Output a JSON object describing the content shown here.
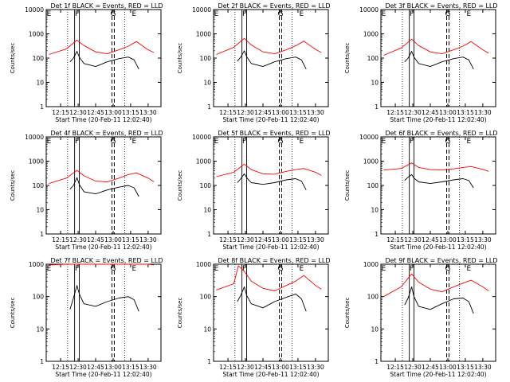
{
  "colors": {
    "events": "#000000",
    "lld": "#ff0000",
    "axes": "#000000",
    "background": "#ffffff"
  },
  "common": {
    "ylabel": "Counts/sec",
    "xlabel": "Start Time (20-Feb-11 12:02:40)",
    "x_tick_labels": [
      "12:15",
      "12:30",
      "12:45",
      "13:00",
      "13:15",
      "13:30"
    ],
    "y_tick_labels": [
      "1",
      "10",
      "100",
      "1000",
      "10000"
    ]
  },
  "chart_data": [
    {
      "type": "line",
      "title": "Det 1f BLACK = Events, RED = LLD",
      "xlim": [
        "12:02:40",
        "13:41:00"
      ],
      "ylim": [
        1,
        10000
      ],
      "yscale": "log",
      "markers": [
        "E",
        "F",
        "G",
        "E"
      ],
      "series": [
        {
          "name": "Events",
          "x": [
            "12:23",
            "12:26",
            "12:29",
            "12:31",
            "12:35",
            "12:45",
            "12:55",
            "13:05",
            "13:13",
            "13:18",
            "13:22"
          ],
          "values": [
            70,
            100,
            190,
            110,
            60,
            45,
            70,
            95,
            110,
            85,
            35
          ]
        },
        {
          "name": "LLD",
          "x": [
            "12:05",
            "12:20",
            "12:29",
            "12:35",
            "12:45",
            "12:55",
            "13:05",
            "13:13",
            "13:20",
            "13:30",
            "13:35"
          ],
          "values": [
            140,
            240,
            550,
            330,
            180,
            150,
            220,
            310,
            480,
            220,
            170
          ]
        }
      ]
    },
    {
      "type": "line",
      "title": "Det 2f BLACK = Events, RED = LLD",
      "xlim": [
        "12:02:40",
        "13:41:00"
      ],
      "ylim": [
        1,
        10000
      ],
      "yscale": "log",
      "markers": [
        "E",
        "F",
        "G",
        "E"
      ],
      "series": [
        {
          "name": "Events",
          "x": [
            "12:23",
            "12:26",
            "12:29",
            "12:31",
            "12:35",
            "12:45",
            "12:55",
            "13:05",
            "13:13",
            "13:18",
            "13:22"
          ],
          "values": [
            75,
            110,
            200,
            115,
            60,
            45,
            70,
            95,
            110,
            85,
            35
          ]
        },
        {
          "name": "LLD",
          "x": [
            "12:05",
            "12:20",
            "12:29",
            "12:35",
            "12:45",
            "12:55",
            "13:05",
            "13:13",
            "13:20",
            "13:30",
            "13:35"
          ],
          "values": [
            140,
            280,
            650,
            350,
            180,
            150,
            220,
            320,
            500,
            230,
            170
          ]
        }
      ]
    },
    {
      "type": "line",
      "title": "Det 3f BLACK = Events, RED = LLD",
      "xlim": [
        "12:02:40",
        "13:41:00"
      ],
      "ylim": [
        1,
        10000
      ],
      "yscale": "log",
      "markers": [
        "E",
        "F",
        "G",
        "E"
      ],
      "series": [
        {
          "name": "Events",
          "x": [
            "12:23",
            "12:26",
            "12:29",
            "12:31",
            "12:35",
            "12:45",
            "12:55",
            "13:05",
            "13:13",
            "13:18",
            "13:22"
          ],
          "values": [
            70,
            100,
            190,
            110,
            60,
            45,
            70,
            95,
            110,
            85,
            35
          ]
        },
        {
          "name": "LLD",
          "x": [
            "12:05",
            "12:20",
            "12:29",
            "12:35",
            "12:45",
            "12:55",
            "13:05",
            "13:13",
            "13:20",
            "13:30",
            "13:35"
          ],
          "values": [
            130,
            260,
            600,
            330,
            180,
            150,
            220,
            310,
            480,
            220,
            160
          ]
        }
      ]
    },
    {
      "type": "line",
      "title": "Det 4f BLACK = Events, RED = LLD",
      "xlim": [
        "12:02:40",
        "13:41:00"
      ],
      "ylim": [
        1,
        10000
      ],
      "yscale": "log",
      "markers": [
        "E",
        "F",
        "G",
        "E"
      ],
      "series": [
        {
          "name": "Events",
          "x": [
            "12:23",
            "12:26",
            "12:29",
            "12:31",
            "12:35",
            "12:45",
            "12:55",
            "13:05",
            "13:13",
            "13:18",
            "13:22"
          ],
          "values": [
            70,
            100,
            210,
            110,
            55,
            45,
            65,
            85,
            100,
            80,
            35
          ]
        },
        {
          "name": "LLD",
          "x": [
            "12:05",
            "12:20",
            "12:29",
            "12:35",
            "12:45",
            "12:55",
            "13:05",
            "13:13",
            "13:20",
            "13:30",
            "13:35"
          ],
          "values": [
            120,
            200,
            420,
            250,
            150,
            140,
            200,
            280,
            330,
            200,
            140
          ]
        }
      ]
    },
    {
      "type": "line",
      "title": "Det 5f BLACK = Events, RED = LLD",
      "xlim": [
        "12:02:40",
        "13:41:00"
      ],
      "ylim": [
        1,
        10000
      ],
      "yscale": "log",
      "markers": [
        "E",
        "F",
        "G",
        "E"
      ],
      "series": [
        {
          "name": "Events",
          "x": [
            "12:23",
            "12:26",
            "12:29",
            "12:31",
            "12:35",
            "12:45",
            "12:55",
            "13:05",
            "13:13",
            "13:18",
            "13:22"
          ],
          "values": [
            130,
            190,
            300,
            210,
            130,
            110,
            130,
            170,
            190,
            150,
            65
          ]
        },
        {
          "name": "LLD",
          "x": [
            "12:05",
            "12:20",
            "12:29",
            "12:35",
            "12:45",
            "12:55",
            "13:05",
            "13:13",
            "13:20",
            "13:30",
            "13:35"
          ],
          "values": [
            230,
            350,
            750,
            450,
            300,
            290,
            380,
            450,
            500,
            350,
            260
          ]
        }
      ]
    },
    {
      "type": "line",
      "title": "Det 6f BLACK = Events, RED = LLD",
      "xlim": [
        "12:02:40",
        "13:41:00"
      ],
      "ylim": [
        1,
        10000
      ],
      "yscale": "log",
      "markers": [
        "E",
        "F",
        "G",
        "E"
      ],
      "series": [
        {
          "name": "Events",
          "x": [
            "12:23",
            "12:26",
            "12:29",
            "12:31",
            "12:35",
            "12:45",
            "12:55",
            "13:05",
            "13:13",
            "13:18",
            "13:22"
          ],
          "values": [
            160,
            220,
            280,
            200,
            140,
            120,
            140,
            170,
            190,
            160,
            80
          ]
        },
        {
          "name": "LLD",
          "x": [
            "12:05",
            "12:20",
            "12:29",
            "12:35",
            "12:45",
            "12:55",
            "13:05",
            "13:13",
            "13:20",
            "13:30",
            "13:35"
          ],
          "values": [
            430,
            500,
            850,
            550,
            450,
            430,
            480,
            550,
            600,
            460,
            380
          ]
        }
      ]
    },
    {
      "type": "line",
      "title": "Det 7f BLACK = Events, RED = LLD",
      "xlim": [
        "12:02:40",
        "13:41:00"
      ],
      "ylim": [
        1,
        1000
      ],
      "yscale": "log",
      "markers": [
        "E",
        "F",
        "G",
        "E"
      ],
      "series": [
        {
          "name": "Events",
          "x": [
            "12:23",
            "12:26",
            "12:29",
            "12:31",
            "12:35",
            "12:45",
            "12:55",
            "13:05",
            "13:13",
            "13:18",
            "13:22"
          ],
          "values": [
            40,
            90,
            220,
            120,
            60,
            50,
            70,
            90,
            100,
            80,
            35
          ]
        },
        {
          "name": "LLD",
          "x": [
            "12:05",
            "12:20",
            "12:29",
            "12:35",
            "12:45",
            "12:55",
            "13:05",
            "13:13",
            "13:20",
            "13:30",
            "13:35"
          ],
          "values": [
            950,
            1000,
            1000,
            1000,
            1000,
            1000,
            1000,
            1000,
            1000,
            1000,
            950
          ]
        }
      ]
    },
    {
      "type": "line",
      "title": "Det 8f BLACK = Events, RED = LLD",
      "xlim": [
        "12:02:40",
        "13:41:00"
      ],
      "ylim": [
        1,
        1000
      ],
      "yscale": "log",
      "markers": [
        "E",
        "F",
        "G",
        "E"
      ],
      "series": [
        {
          "name": "Events",
          "x": [
            "12:23",
            "12:26",
            "12:29",
            "12:31",
            "12:35",
            "12:45",
            "12:55",
            "13:05",
            "13:13",
            "13:18",
            "13:22"
          ],
          "values": [
            70,
            110,
            200,
            110,
            60,
            45,
            70,
            95,
            120,
            85,
            35
          ]
        },
        {
          "name": "LLD",
          "x": [
            "12:05",
            "12:20",
            "12:24",
            "12:29",
            "12:35",
            "12:45",
            "12:55",
            "13:05",
            "13:13",
            "13:20",
            "13:30",
            "13:35"
          ],
          "values": [
            160,
            250,
            900,
            600,
            300,
            180,
            150,
            220,
            300,
            450,
            220,
            170
          ]
        }
      ]
    },
    {
      "type": "line",
      "title": "Det 9f BLACK = Events, RED = LLD",
      "xlim": [
        "12:02:40",
        "13:41:00"
      ],
      "ylim": [
        1,
        1000
      ],
      "yscale": "log",
      "markers": [
        "E",
        "F",
        "G",
        "E"
      ],
      "series": [
        {
          "name": "Events",
          "x": [
            "12:23",
            "12:26",
            "12:29",
            "12:31",
            "12:35",
            "12:45",
            "12:55",
            "13:05",
            "13:13",
            "13:18",
            "13:22"
          ],
          "values": [
            55,
            90,
            200,
            100,
            50,
            40,
            60,
            85,
            90,
            70,
            30
          ]
        },
        {
          "name": "LLD",
          "x": [
            "12:05",
            "12:20",
            "12:29",
            "12:35",
            "12:45",
            "12:55",
            "13:05",
            "13:13",
            "13:20",
            "13:30",
            "13:35"
          ],
          "values": [
            100,
            200,
            500,
            280,
            170,
            140,
            200,
            260,
            320,
            200,
            150
          ]
        }
      ]
    }
  ]
}
